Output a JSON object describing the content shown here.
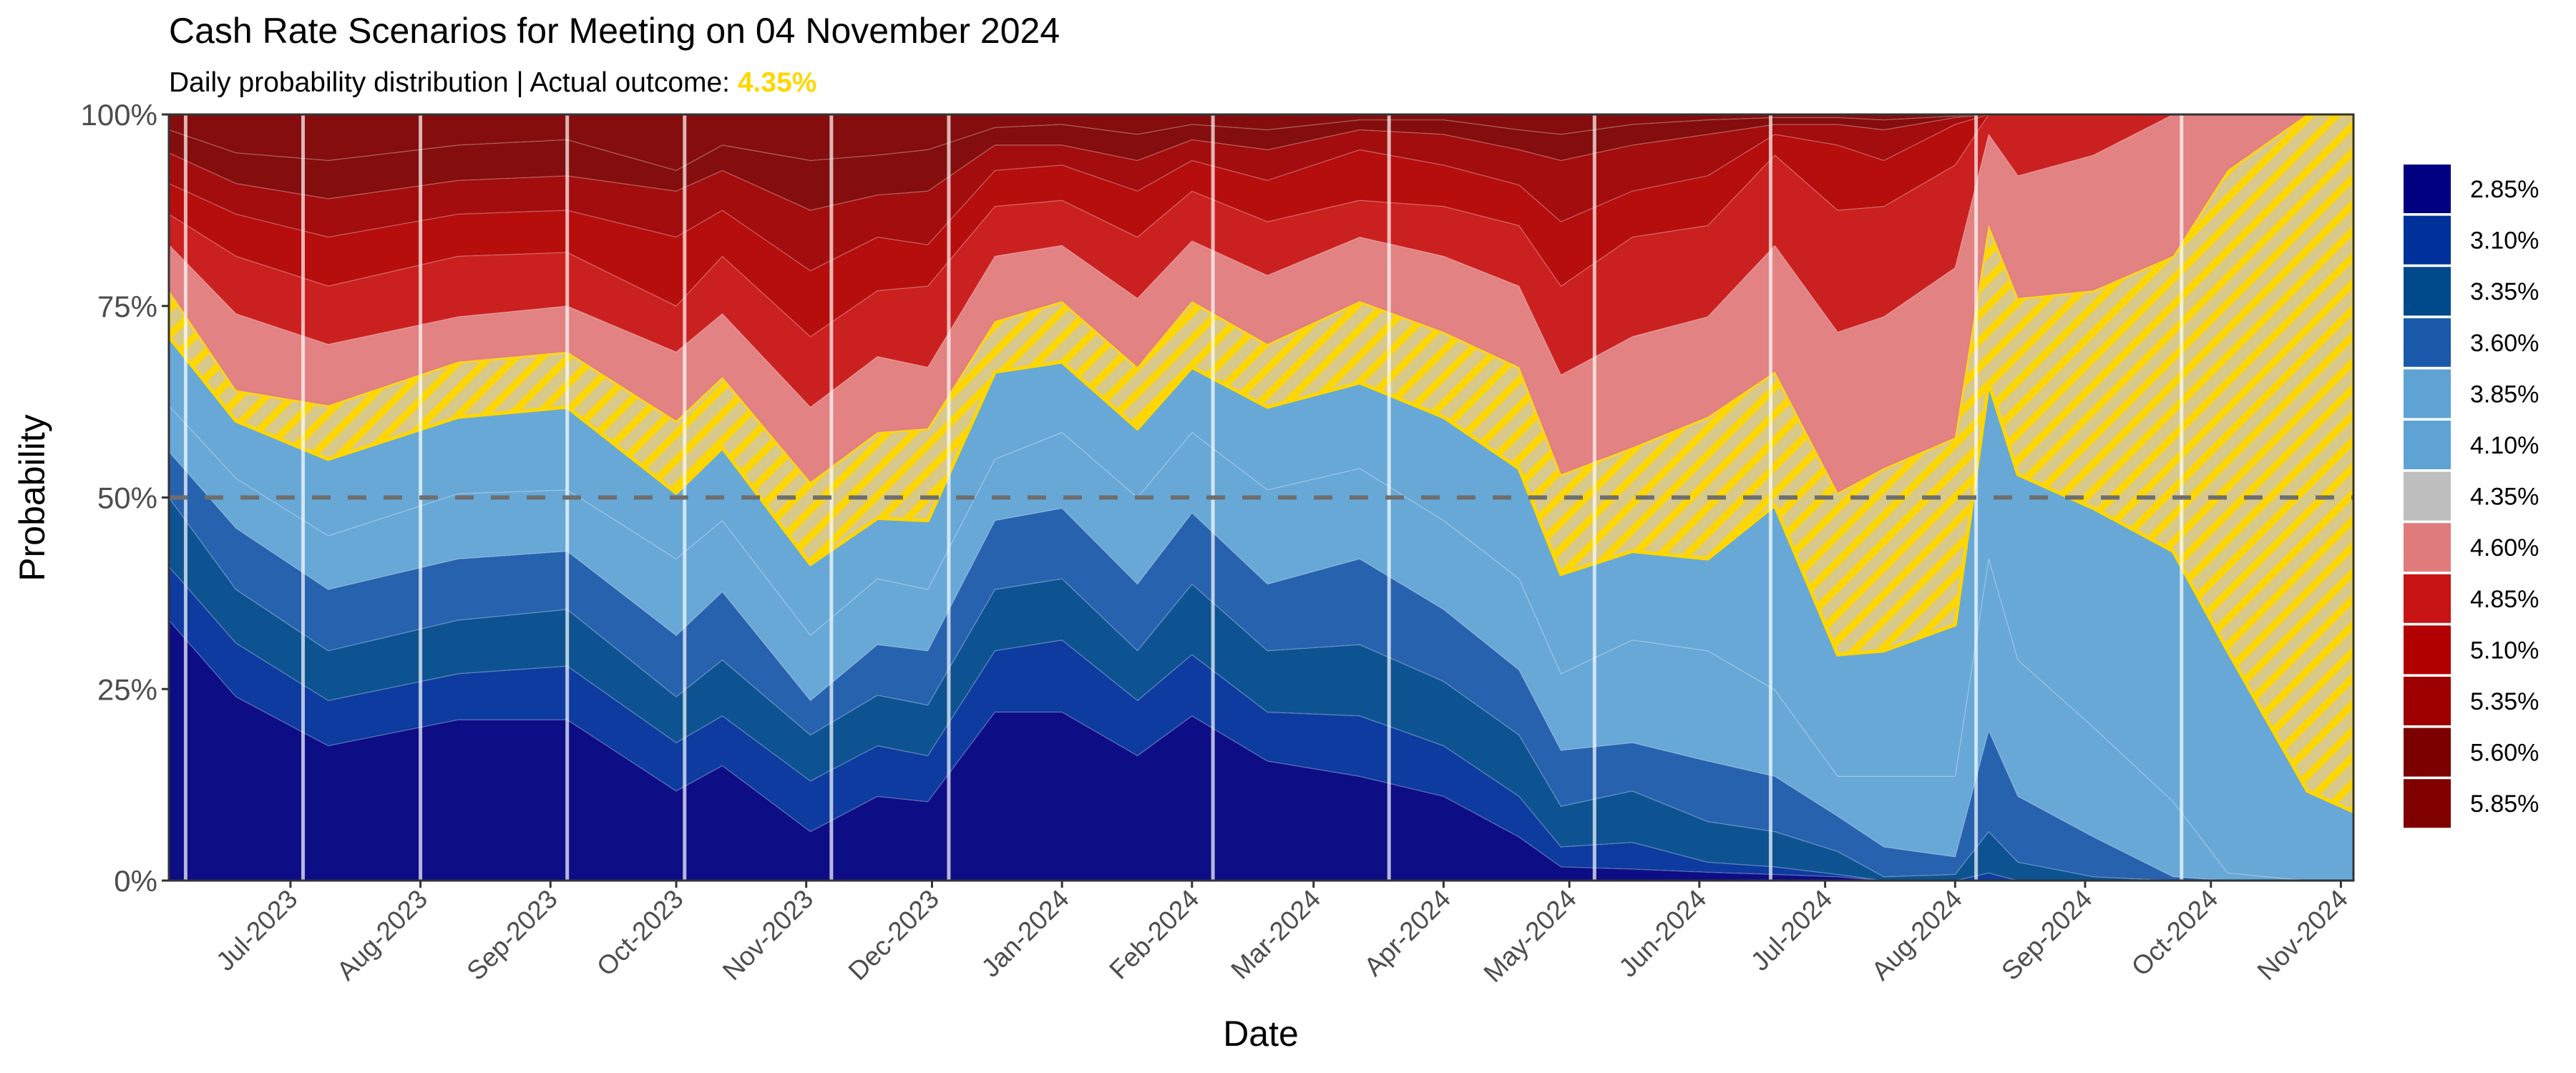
{
  "chart_data": {
    "type": "area",
    "stacked": true,
    "title": "Cash Rate Scenarios for Meeting on 04 November 2024",
    "subtitle": "Daily probability distribution | Actual outcome: ",
    "actual_outcome": "4.35%",
    "xlabel": "Date",
    "ylabel": "Probability",
    "ylim": [
      0,
      100
    ],
    "x_range": [
      "2023-06-02",
      "2024-11-04"
    ],
    "y_ticks": [
      {
        "value": 0,
        "label": "0%"
      },
      {
        "value": 25,
        "label": "25%"
      },
      {
        "value": 50,
        "label": "50%"
      },
      {
        "value": 75,
        "label": "75%"
      },
      {
        "value": 100,
        "label": "100%"
      }
    ],
    "x_ticks": [
      {
        "date": "2023-07-01",
        "label": "Jul-2023"
      },
      {
        "date": "2023-08-01",
        "label": "Aug-2023"
      },
      {
        "date": "2023-09-01",
        "label": "Sep-2023"
      },
      {
        "date": "2023-10-01",
        "label": "Oct-2023"
      },
      {
        "date": "2023-11-01",
        "label": "Nov-2023"
      },
      {
        "date": "2023-12-01",
        "label": "Dec-2023"
      },
      {
        "date": "2024-01-01",
        "label": "Jan-2024"
      },
      {
        "date": "2024-02-01",
        "label": "Feb-2024"
      },
      {
        "date": "2024-03-01",
        "label": "Mar-2024"
      },
      {
        "date": "2024-04-01",
        "label": "Apr-2024"
      },
      {
        "date": "2024-05-01",
        "label": "May-2024"
      },
      {
        "date": "2024-06-01",
        "label": "Jun-2024"
      },
      {
        "date": "2024-07-01",
        "label": "Jul-2024"
      },
      {
        "date": "2024-08-01",
        "label": "Aug-2024"
      },
      {
        "date": "2024-09-01",
        "label": "Sep-2024"
      },
      {
        "date": "2024-10-01",
        "label": "Oct-2024"
      },
      {
        "date": "2024-11-01",
        "label": "Nov-2024"
      }
    ],
    "reference_line": 50,
    "meeting_dates": [
      "2023-06-06",
      "2023-07-04",
      "2023-08-01",
      "2023-09-05",
      "2023-10-03",
      "2023-11-07",
      "2023-12-05",
      "2024-02-06",
      "2024-03-19",
      "2024-05-07",
      "2024-06-18",
      "2024-08-06",
      "2024-09-24"
    ],
    "legend_position": "right",
    "grid": false,
    "highlight_series": "4.35%",
    "colors": {
      "highlight_stripe": "#FFD700",
      "highlight_bg": "#D8C98A",
      "reference_line": "#6e6e6e"
    },
    "dates": [
      "2023-06-02",
      "2023-06-18",
      "2023-07-10",
      "2023-08-10",
      "2023-09-05",
      "2023-10-01",
      "2023-10-12",
      "2023-11-02",
      "2023-11-18",
      "2023-11-30",
      "2023-12-16",
      "2024-01-01",
      "2024-01-19",
      "2024-02-01",
      "2024-02-19",
      "2024-03-12",
      "2024-04-01",
      "2024-04-19",
      "2024-04-29",
      "2024-05-16",
      "2024-06-03",
      "2024-06-19",
      "2024-07-04",
      "2024-07-15",
      "2024-08-01",
      "2024-08-09",
      "2024-08-16",
      "2024-09-03",
      "2024-09-22",
      "2024-10-05",
      "2024-10-24",
      "2024-11-04"
    ],
    "series": [
      {
        "name": "2.85%",
        "color": "#000080",
        "values": [
          34,
          24,
          17.6,
          21,
          21,
          11.7,
          15,
          6.4,
          11,
          10.3,
          22,
          22,
          16.3,
          21.5,
          15.6,
          13.6,
          11,
          5.7,
          1.8,
          1.5,
          1.1,
          0.8,
          0.5,
          0,
          0,
          0,
          0,
          0,
          0,
          0,
          0,
          0
        ]
      },
      {
        "name": "3.10%",
        "color": "#00309A",
        "values": [
          7,
          7,
          5.9,
          6,
          7,
          6.3,
          6.5,
          6.6,
          6.6,
          6,
          8,
          9.4,
          7.2,
          8,
          6.4,
          7.9,
          6.6,
          5.3,
          2.6,
          3.5,
          1.3,
          1,
          0.3,
          0,
          0,
          1,
          0,
          0,
          0,
          0,
          0,
          0
        ]
      },
      {
        "name": "3.35%",
        "color": "#004A8C",
        "values": [
          9,
          7,
          6.5,
          7,
          7.4,
          6,
          7.3,
          6,
          6.6,
          6.6,
          8,
          8,
          6.5,
          9.2,
          8,
          9.3,
          8.4,
          8,
          5.3,
          6.7,
          5.3,
          4.6,
          3,
          0.5,
          0.8,
          5.4,
          2.4,
          0.5,
          0,
          0,
          0,
          0
        ]
      },
      {
        "name": "3.60%",
        "color": "#1B5AAB",
        "values": [
          6,
          8,
          8,
          8,
          7.6,
          8,
          8.9,
          4.5,
          6.6,
          7.1,
          9,
          9.2,
          8.7,
          9.3,
          8.7,
          11.2,
          9.4,
          8.5,
          7.3,
          6.3,
          7.9,
          7.2,
          4.6,
          3.9,
          2.3,
          13.2,
          8.6,
          5.2,
          0.5,
          0,
          0,
          0
        ]
      },
      {
        "name": "3.85%",
        "color": "#5FA3D5",
        "values": [
          6,
          6.5,
          7,
          8.5,
          8,
          10,
          9.3,
          8.5,
          8.6,
          8,
          8,
          9.9,
          11.3,
          10.5,
          12.3,
          11.8,
          11.6,
          11.9,
          10,
          13.4,
          14.4,
          11.3,
          5.2,
          9.2,
          10.5,
          22.4,
          17.8,
          14.3,
          9.8,
          1,
          0,
          0
        ]
      },
      {
        "name": "4.10%",
        "color": "#5FA3D5",
        "values": [
          9,
          7.5,
          10,
          10,
          10.8,
          8.6,
          9.5,
          9.3,
          7.9,
          9,
          11.4,
          9.2,
          9,
          8.5,
          10.8,
          11.2,
          13.5,
          14.4,
          13,
          11.6,
          12,
          24.1,
          15.9,
          16.4,
          19.8,
          23,
          24.2,
          28.6,
          32.7,
          29,
          11.7,
          9
        ]
      },
      {
        "name": "4.35%",
        "color": "#BEBEBE",
        "values": [
          6,
          4,
          7,
          7.2,
          7.2,
          9.4,
          9.2,
          10.7,
          11.2,
          12,
          6.6,
          7.9,
          8,
          8.6,
          8.2,
          10.6,
          11.1,
          13.2,
          13,
          13.5,
          18.5,
          17.4,
          21.1,
          23.8,
          24.4,
          20.5,
          23,
          28.4,
          38.5,
          62.7,
          88.3,
          91
        ]
      },
      {
        "name": "4.60%",
        "color": "#E07B7B",
        "values": [
          6,
          10,
          8,
          5.9,
          6,
          9,
          8.3,
          9.8,
          9.9,
          8,
          8.5,
          7.3,
          9,
          7.9,
          9,
          8.4,
          9.9,
          10.6,
          13,
          14.5,
          13.1,
          16.5,
          21,
          19.8,
          22.2,
          11.9,
          16,
          17.7,
          18.5,
          7.3,
          0,
          0
        ]
      },
      {
        "name": "4.85%",
        "color": "#C81414",
        "values": [
          4,
          7.5,
          7.6,
          7.9,
          7,
          6,
          7.5,
          9.2,
          8.6,
          10.6,
          6.5,
          5.9,
          8,
          6.5,
          7,
          4.8,
          6.5,
          7.9,
          11.6,
          13,
          11.9,
          11.8,
          15.9,
          14.4,
          13.4,
          2.6,
          8,
          5.3,
          0,
          0,
          0,
          0
        ]
      },
      {
        "name": "5.10%",
        "color": "#B20000",
        "values": [
          4,
          5.5,
          6.4,
          5.5,
          5.5,
          9,
          6,
          8.6,
          7,
          5.4,
          4.7,
          4.6,
          6,
          4,
          5.4,
          6.6,
          5.4,
          5.3,
          8.4,
          6,
          6.5,
          2.7,
          8.5,
          6,
          5.3,
          0,
          0,
          0,
          0,
          0,
          0,
          0
        ]
      },
      {
        "name": "5.35%",
        "color": "#9E0000",
        "values": [
          4,
          4,
          5,
          4.4,
          4.5,
          6,
          5.2,
          7.9,
          5.5,
          7,
          3.3,
          2.6,
          4,
          2.7,
          4,
          2.6,
          4,
          4.6,
          8,
          6,
          5.4,
          1.3,
          2.7,
          4,
          0.9,
          0,
          0,
          0,
          0,
          0,
          0,
          0
        ]
      },
      {
        "name": "5.60%",
        "color": "#7D0000",
        "values": [
          3,
          4,
          5,
          4.6,
          4.7,
          2.7,
          3.3,
          6.5,
          5.2,
          5.4,
          2.3,
          2.7,
          3.4,
          2,
          2.6,
          1.3,
          1.9,
          2.6,
          3.4,
          2.7,
          1.9,
          0.9,
          0.9,
          1.3,
          0.2,
          0,
          0,
          0,
          0,
          0,
          0,
          0
        ]
      },
      {
        "name": "5.85%",
        "color": "#800000",
        "values": [
          2,
          5,
          6,
          4,
          3.3,
          7.3,
          4,
          6,
          5.3,
          4.6,
          1.7,
          1.3,
          2.6,
          1.3,
          2,
          0.7,
          0.7,
          2,
          2.6,
          1.3,
          0.7,
          0.4,
          0.4,
          0.7,
          0.2,
          0,
          0,
          0,
          0,
          0,
          0,
          0
        ]
      }
    ]
  }
}
